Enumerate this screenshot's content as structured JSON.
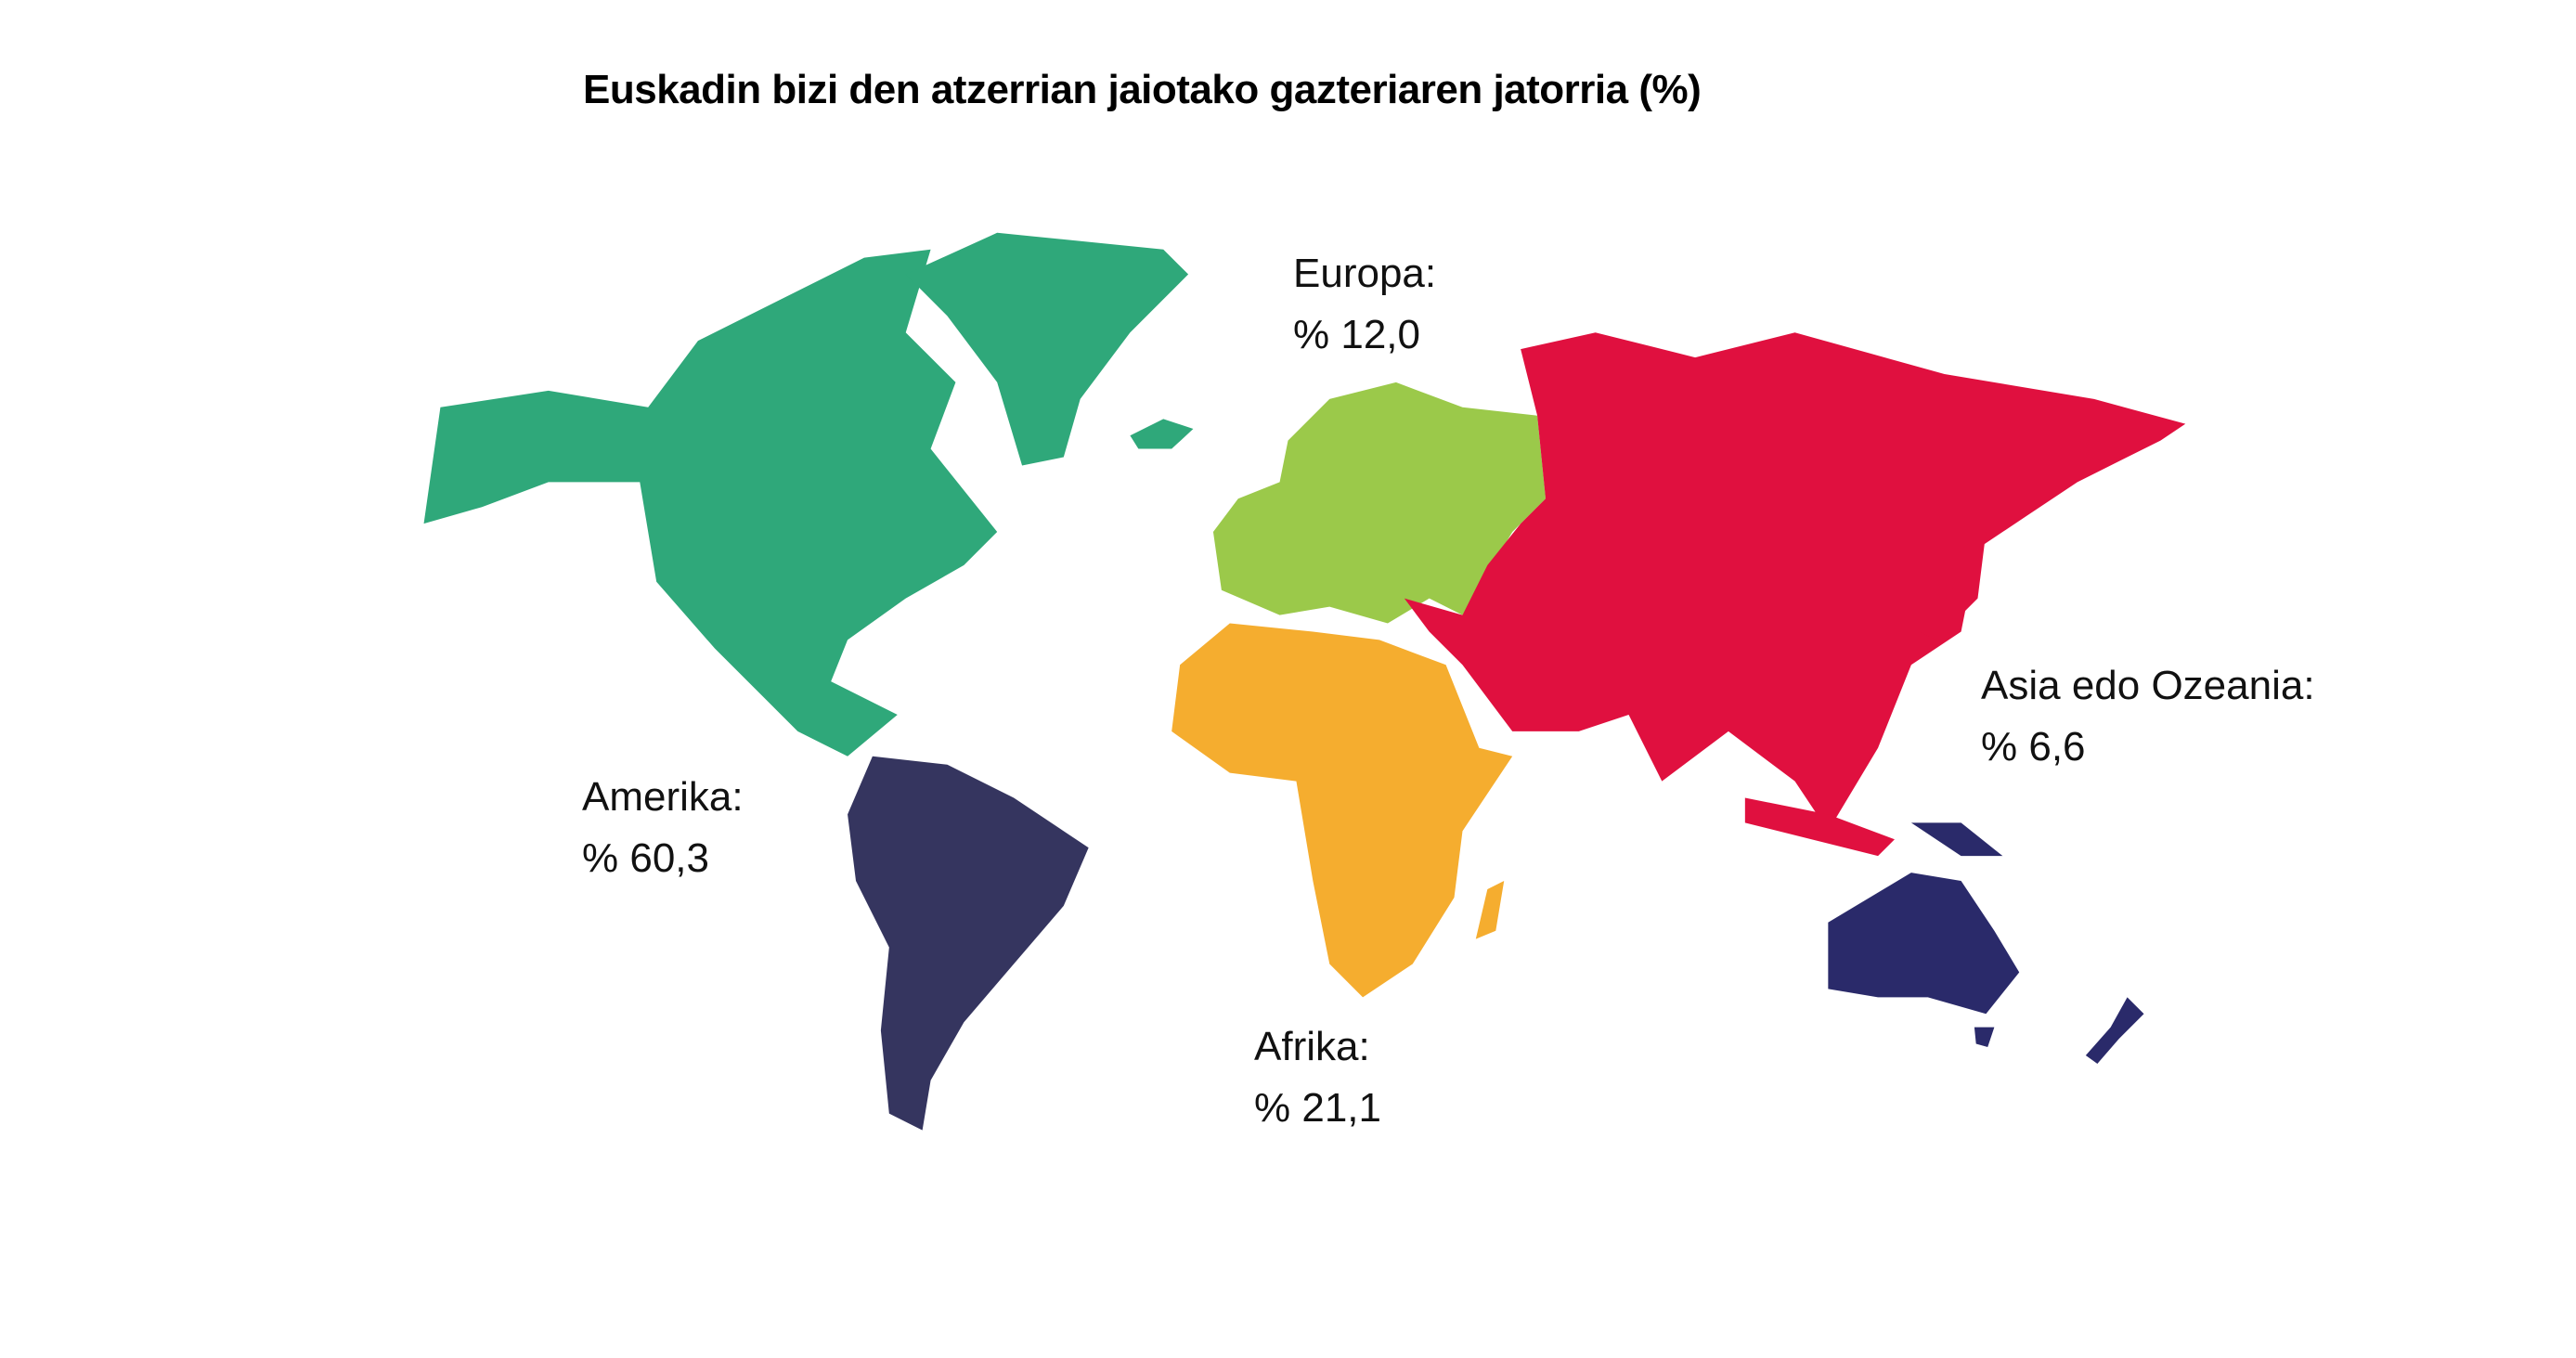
{
  "title": "Euskadin bizi den atzerrian jaiotako gazteriaren jatorria (%)",
  "regions": {
    "amerika": {
      "name": "Amerika:",
      "value": "% 60,3",
      "colors": [
        "#2fa87a",
        "#35355f"
      ]
    },
    "europa": {
      "name": "Europa:",
      "value": "% 12,0",
      "color": "#9bc94a"
    },
    "afrika": {
      "name": "Afrika:",
      "value": "% 21,1",
      "color": "#f5ad2f"
    },
    "asia": {
      "name": "Asia edo Ozeania:",
      "value": "% 6,6",
      "colors": [
        "#e0103f",
        "#2a2a6a"
      ]
    }
  }
}
